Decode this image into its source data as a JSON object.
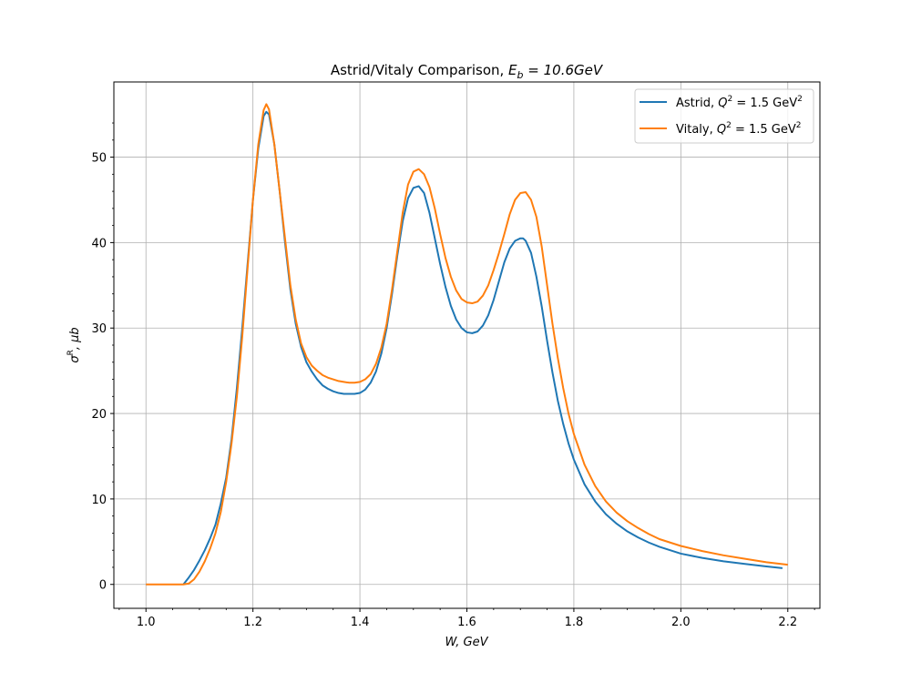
{
  "chart_data": {
    "type": "line",
    "title_prefix": "Astrid/Vitaly Comparison, ",
    "title_math": "E",
    "title_math_sub": "b",
    "title_math_rest": " = 10.6GeV",
    "xlabel": "W, GeV",
    "ylabel_sigma": "σ",
    "ylabel_sup": "R",
    "ylabel_rest": ", μb",
    "xlim": [
      0.94,
      2.26
    ],
    "ylim": [
      -2.8,
      58.8
    ],
    "xticks": [
      1.0,
      1.2,
      1.4,
      1.6,
      1.8,
      2.0,
      2.2
    ],
    "xtick_labels": [
      "1.0",
      "1.2",
      "1.4",
      "1.6",
      "1.8",
      "2.0",
      "2.2"
    ],
    "yticks": [
      0,
      10,
      20,
      30,
      40,
      50
    ],
    "ytick_labels": [
      "0",
      "10",
      "20",
      "30",
      "40",
      "50"
    ],
    "grid": true,
    "legend_position": "top-right",
    "series": [
      {
        "name_prefix": "Astrid, ",
        "name_math": "Q",
        "name_math_sup": "2",
        "name_math_rest": " = 1.5 GeV",
        "name_math_sup2": "2",
        "color": "#1f77b4",
        "points": [
          [
            1.07,
            0
          ],
          [
            1.08,
            0.8
          ],
          [
            1.09,
            1.7
          ],
          [
            1.1,
            2.8
          ],
          [
            1.11,
            4.0
          ],
          [
            1.12,
            5.4
          ],
          [
            1.13,
            7.0
          ],
          [
            1.14,
            9.5
          ],
          [
            1.15,
            12.5
          ],
          [
            1.16,
            17.0
          ],
          [
            1.17,
            23.0
          ],
          [
            1.18,
            30.0
          ],
          [
            1.19,
            37.5
          ],
          [
            1.2,
            45.0
          ],
          [
            1.21,
            51.0
          ],
          [
            1.22,
            54.8
          ],
          [
            1.225,
            55.3
          ],
          [
            1.23,
            55.0
          ],
          [
            1.24,
            51.5
          ],
          [
            1.25,
            46.0
          ],
          [
            1.26,
            40.0
          ],
          [
            1.27,
            34.5
          ],
          [
            1.28,
            30.5
          ],
          [
            1.29,
            27.8
          ],
          [
            1.3,
            26.0
          ],
          [
            1.31,
            24.9
          ],
          [
            1.32,
            24.0
          ],
          [
            1.33,
            23.3
          ],
          [
            1.34,
            22.9
          ],
          [
            1.35,
            22.6
          ],
          [
            1.36,
            22.4
          ],
          [
            1.37,
            22.3
          ],
          [
            1.38,
            22.3
          ],
          [
            1.39,
            22.3
          ],
          [
            1.4,
            22.4
          ],
          [
            1.41,
            22.8
          ],
          [
            1.42,
            23.6
          ],
          [
            1.43,
            24.9
          ],
          [
            1.44,
            27.0
          ],
          [
            1.45,
            30.0
          ],
          [
            1.46,
            34.0
          ],
          [
            1.47,
            38.5
          ],
          [
            1.48,
            42.5
          ],
          [
            1.49,
            45.2
          ],
          [
            1.5,
            46.4
          ],
          [
            1.51,
            46.6
          ],
          [
            1.52,
            45.8
          ],
          [
            1.53,
            43.5
          ],
          [
            1.54,
            40.5
          ],
          [
            1.55,
            37.5
          ],
          [
            1.56,
            34.8
          ],
          [
            1.57,
            32.6
          ],
          [
            1.58,
            31.0
          ],
          [
            1.59,
            30.0
          ],
          [
            1.6,
            29.5
          ],
          [
            1.61,
            29.4
          ],
          [
            1.62,
            29.6
          ],
          [
            1.63,
            30.3
          ],
          [
            1.64,
            31.5
          ],
          [
            1.65,
            33.3
          ],
          [
            1.66,
            35.5
          ],
          [
            1.67,
            37.7
          ],
          [
            1.68,
            39.3
          ],
          [
            1.69,
            40.2
          ],
          [
            1.7,
            40.5
          ],
          [
            1.705,
            40.5
          ],
          [
            1.71,
            40.2
          ],
          [
            1.72,
            38.8
          ],
          [
            1.73,
            36.0
          ],
          [
            1.74,
            32.5
          ],
          [
            1.75,
            28.5
          ],
          [
            1.76,
            24.8
          ],
          [
            1.77,
            21.5
          ],
          [
            1.78,
            18.8
          ],
          [
            1.79,
            16.5
          ],
          [
            1.8,
            14.6
          ],
          [
            1.82,
            11.7
          ],
          [
            1.84,
            9.7
          ],
          [
            1.86,
            8.2
          ],
          [
            1.88,
            7.1
          ],
          [
            1.9,
            6.2
          ],
          [
            1.92,
            5.5
          ],
          [
            1.94,
            4.9
          ],
          [
            1.96,
            4.4
          ],
          [
            1.98,
            4.0
          ],
          [
            2.0,
            3.6
          ],
          [
            2.04,
            3.1
          ],
          [
            2.08,
            2.7
          ],
          [
            2.12,
            2.4
          ],
          [
            2.16,
            2.1
          ],
          [
            2.19,
            1.9
          ]
        ]
      },
      {
        "name_prefix": "Vitaly, ",
        "name_math": "Q",
        "name_math_sup": "2",
        "name_math_rest": " = 1.5 GeV",
        "name_math_sup2": "2",
        "color": "#ff7f0e",
        "points": [
          [
            1.0,
            0
          ],
          [
            1.02,
            0
          ],
          [
            1.04,
            0
          ],
          [
            1.06,
            0
          ],
          [
            1.07,
            0
          ],
          [
            1.08,
            0.1
          ],
          [
            1.09,
            0.6
          ],
          [
            1.1,
            1.5
          ],
          [
            1.11,
            2.7
          ],
          [
            1.12,
            4.2
          ],
          [
            1.13,
            6.0
          ],
          [
            1.14,
            8.5
          ],
          [
            1.15,
            12.0
          ],
          [
            1.16,
            16.5
          ],
          [
            1.17,
            22.0
          ],
          [
            1.18,
            29.0
          ],
          [
            1.19,
            37.0
          ],
          [
            1.2,
            45.0
          ],
          [
            1.21,
            51.5
          ],
          [
            1.22,
            55.5
          ],
          [
            1.225,
            56.2
          ],
          [
            1.23,
            55.6
          ],
          [
            1.24,
            51.5
          ],
          [
            1.25,
            46.0
          ],
          [
            1.26,
            40.5
          ],
          [
            1.27,
            35.0
          ],
          [
            1.28,
            31.0
          ],
          [
            1.29,
            28.2
          ],
          [
            1.3,
            26.6
          ],
          [
            1.31,
            25.6
          ],
          [
            1.32,
            25.0
          ],
          [
            1.33,
            24.5
          ],
          [
            1.34,
            24.2
          ],
          [
            1.35,
            24.0
          ],
          [
            1.36,
            23.8
          ],
          [
            1.37,
            23.7
          ],
          [
            1.38,
            23.6
          ],
          [
            1.39,
            23.6
          ],
          [
            1.4,
            23.7
          ],
          [
            1.41,
            24.0
          ],
          [
            1.42,
            24.6
          ],
          [
            1.43,
            25.8
          ],
          [
            1.44,
            27.7
          ],
          [
            1.45,
            30.5
          ],
          [
            1.46,
            34.5
          ],
          [
            1.47,
            39.0
          ],
          [
            1.48,
            43.5
          ],
          [
            1.49,
            46.8
          ],
          [
            1.5,
            48.3
          ],
          [
            1.51,
            48.6
          ],
          [
            1.52,
            48.0
          ],
          [
            1.53,
            46.5
          ],
          [
            1.54,
            44.0
          ],
          [
            1.55,
            41.0
          ],
          [
            1.56,
            38.2
          ],
          [
            1.57,
            36.0
          ],
          [
            1.58,
            34.4
          ],
          [
            1.59,
            33.4
          ],
          [
            1.6,
            33.0
          ],
          [
            1.61,
            32.9
          ],
          [
            1.62,
            33.1
          ],
          [
            1.63,
            33.8
          ],
          [
            1.64,
            35.0
          ],
          [
            1.65,
            36.8
          ],
          [
            1.66,
            38.8
          ],
          [
            1.67,
            41.0
          ],
          [
            1.68,
            43.3
          ],
          [
            1.69,
            45.0
          ],
          [
            1.7,
            45.8
          ],
          [
            1.71,
            45.9
          ],
          [
            1.72,
            45.0
          ],
          [
            1.73,
            43.0
          ],
          [
            1.74,
            39.5
          ],
          [
            1.75,
            35.0
          ],
          [
            1.76,
            30.5
          ],
          [
            1.77,
            26.5
          ],
          [
            1.78,
            23.0
          ],
          [
            1.79,
            20.0
          ],
          [
            1.8,
            17.6
          ],
          [
            1.82,
            14.0
          ],
          [
            1.84,
            11.5
          ],
          [
            1.86,
            9.7
          ],
          [
            1.88,
            8.4
          ],
          [
            1.9,
            7.4
          ],
          [
            1.92,
            6.6
          ],
          [
            1.94,
            5.9
          ],
          [
            1.96,
            5.3
          ],
          [
            1.98,
            4.9
          ],
          [
            2.0,
            4.5
          ],
          [
            2.04,
            3.9
          ],
          [
            2.08,
            3.4
          ],
          [
            2.12,
            3.0
          ],
          [
            2.16,
            2.6
          ],
          [
            2.2,
            2.3
          ]
        ]
      }
    ]
  }
}
